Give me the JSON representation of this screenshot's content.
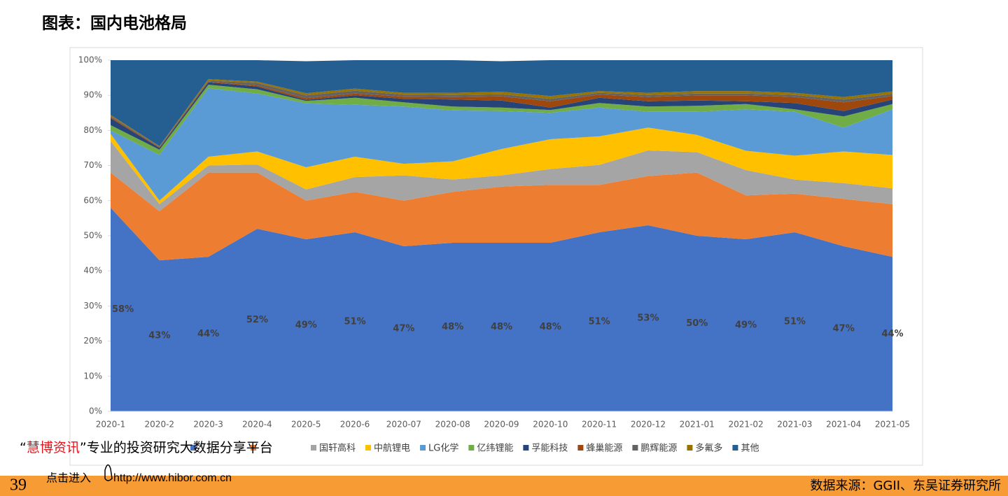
{
  "header": {
    "title": "图表：国内电池格局"
  },
  "chart_data": {
    "type": "stacked_area",
    "categories": [
      "2020-1",
      "2020-2",
      "2020-3",
      "2020-4",
      "2020-5",
      "2020-6",
      "2020-07",
      "2020-08",
      "2020-09",
      "2020-10",
      "2020-11",
      "2020-12",
      "2021-01",
      "2021-02",
      "2021-03",
      "2021-04",
      "2021-05"
    ],
    "ylim": [
      0,
      100
    ],
    "yticks": [
      {
        "value": 0,
        "label": "0%"
      },
      {
        "value": 10,
        "label": "10%"
      },
      {
        "value": 20,
        "label": "20%"
      },
      {
        "value": 30,
        "label": "30%"
      },
      {
        "value": 40,
        "label": "40%"
      },
      {
        "value": 50,
        "label": "50%"
      },
      {
        "value": 60,
        "label": "60%"
      },
      {
        "value": 70,
        "label": "70%"
      },
      {
        "value": 80,
        "label": "80%"
      },
      {
        "value": 90,
        "label": "90%"
      },
      {
        "value": 100,
        "label": "100%"
      }
    ],
    "legend": "bottom",
    "series": [
      {
        "name": null,
        "color": "#4472c4",
        "values": [
          58,
          43,
          44,
          52,
          49,
          51,
          47,
          48,
          48,
          48,
          51,
          53,
          50,
          49,
          51,
          47,
          44
        ],
        "value_labels": [
          "58%",
          "43%",
          "44%",
          "52%",
          "49%",
          "51%",
          "47%",
          "48%",
          "48%",
          "48%",
          "51%",
          "53%",
          "50%",
          "49%",
          "51%",
          "47%",
          "44%"
        ]
      },
      {
        "name": null,
        "color": "#ed7d31",
        "values": [
          10,
          14,
          24,
          16,
          11,
          11.5,
          13,
          14.5,
          16,
          16.5,
          13.5,
          14,
          18,
          12.5,
          11,
          13.5,
          15
        ]
      },
      {
        "name": "国轩高科",
        "color": "#a5a5a5",
        "values": [
          9,
          2,
          2,
          2.3,
          3.2,
          4.2,
          7.2,
          3.5,
          3.2,
          4.5,
          5.7,
          7.3,
          5.8,
          7.2,
          4,
          4.5,
          4.5
        ]
      },
      {
        "name": "中航锂电",
        "color": "#ffc000",
        "values": [
          2,
          1,
          2.5,
          3.7,
          6.3,
          5.8,
          3.3,
          5.2,
          7.5,
          8.5,
          8.1,
          6.5,
          4.9,
          5.5,
          6.8,
          9,
          9.5
        ]
      },
      {
        "name": "LG化学",
        "color": "#5b9bd5",
        "values": [
          1,
          13,
          19.5,
          16.5,
          18.2,
          14.8,
          16.3,
          14.5,
          10.8,
          7.5,
          8.2,
          4.5,
          6.6,
          11.8,
          12.5,
          6.8,
          13
        ]
      },
      {
        "name": "亿纬锂能",
        "color": "#70ad47",
        "values": [
          1.5,
          1.5,
          1,
          1.2,
          0.7,
          2,
          1.2,
          1.1,
          1,
          0.8,
          1.3,
          1.5,
          1.7,
          1.5,
          0.7,
          3.2,
          1.5
        ]
      },
      {
        "name": "孚能科技",
        "color": "#264478",
        "values": [
          2,
          0.5,
          0.7,
          0.8,
          0.3,
          0.7,
          1,
          2,
          2,
          0.7,
          1.5,
          1.5,
          1.5,
          0.8,
          1.8,
          1.5,
          1.3
        ]
      },
      {
        "name": "蜂巢能源",
        "color": "#9e480e",
        "values": [
          0.3,
          0.2,
          0.2,
          0.3,
          0.5,
          0.5,
          0.6,
          0.7,
          1.2,
          1.8,
          0.9,
          1.2,
          1.5,
          1.7,
          1.7,
          2.5,
          1
        ]
      },
      {
        "name": "鹏辉能源",
        "color": "#636363",
        "values": [
          0.3,
          0.2,
          0.3,
          0.7,
          0.8,
          0.8,
          0.6,
          0.6,
          0.6,
          0.7,
          0.5,
          0.6,
          0.5,
          0.5,
          0.6,
          0.8,
          0.6
        ]
      },
      {
        "name": "多氟多",
        "color": "#997300",
        "values": [
          0.3,
          0.1,
          0.4,
          0.4,
          0.6,
          0.6,
          0.5,
          0.6,
          0.7,
          0.8,
          0.5,
          0.6,
          0.7,
          0.7,
          0.6,
          0.7,
          0.7
        ]
      },
      {
        "name": "其他",
        "color": "#255e91",
        "values": [
          15.6,
          24.5,
          5.4,
          6.1,
          9.1,
          8.1,
          9.3,
          9.3,
          8.7,
          10.2,
          8.8,
          9.3,
          8.8,
          8.8,
          9.3,
          10.5,
          8.9
        ]
      }
    ]
  },
  "watermark": {
    "open_quote": "“",
    "brand": "慧博资讯",
    "close_quote": "”",
    "slogan": "专业的投资研究大数据分享平台",
    "click": "点击进入",
    "url": "http://www.hibor.com.cn"
  },
  "footer": {
    "page": "39",
    "source": "数据来源：GGII、东吴证券研究所"
  }
}
